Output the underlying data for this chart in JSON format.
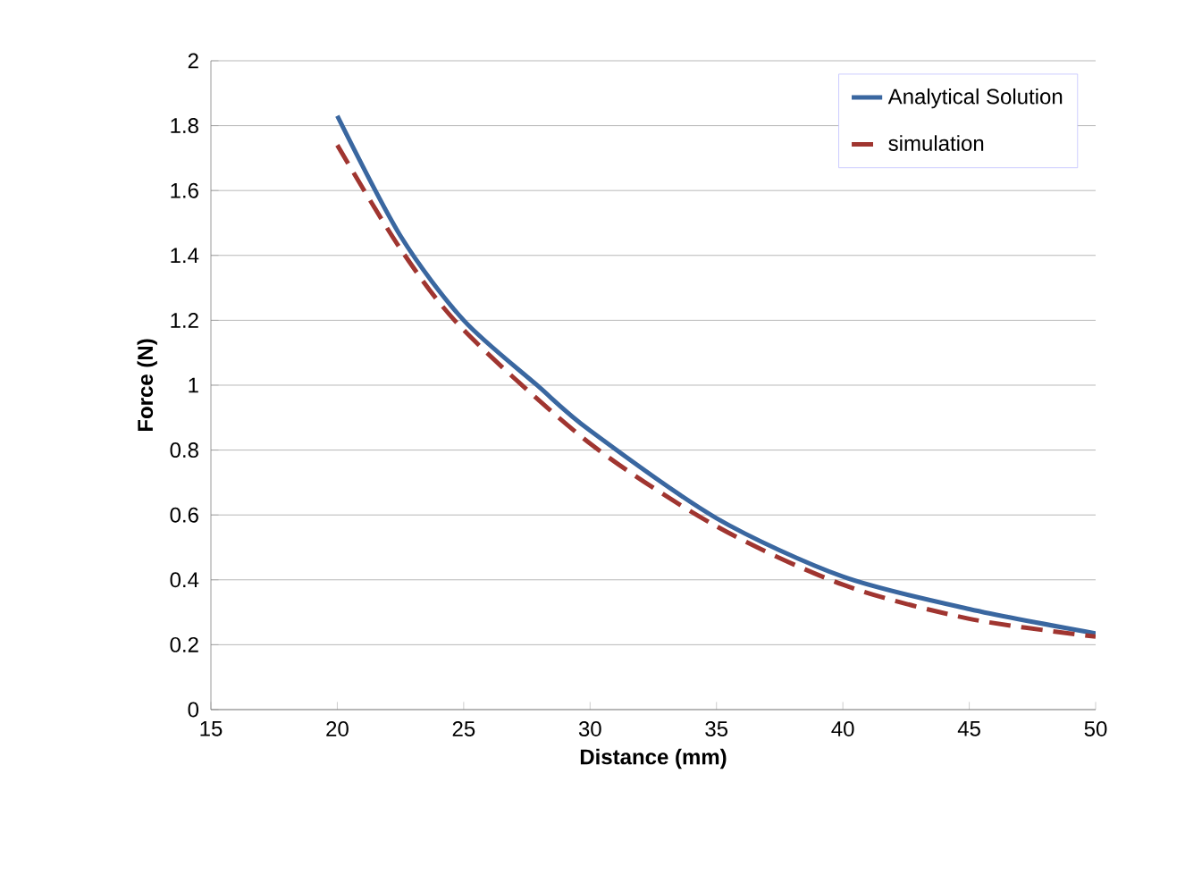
{
  "chart_data": {
    "type": "line",
    "xlabel": "Distance (mm)",
    "ylabel": "Force (N)",
    "xlim": [
      15,
      50
    ],
    "xticks": [
      15,
      20,
      25,
      30,
      35,
      40,
      45,
      50
    ],
    "ylim": [
      0,
      2
    ],
    "yticks": [
      0,
      0.2,
      0.4,
      0.6,
      0.8,
      1,
      1.2,
      1.4,
      1.6,
      1.8,
      2
    ],
    "grid": "y",
    "legend": "top right",
    "marker": "none",
    "series": [
      {
        "name": "Analytical Solution",
        "color": "#3a67a0",
        "line_style": "solid",
        "x": [
          20,
          22.5,
          25,
          27.9,
          30,
          35,
          40,
          45,
          50
        ],
        "values": [
          1.83,
          1.46,
          1.2,
          1.0,
          0.86,
          0.59,
          0.41,
          0.31,
          0.235
        ]
      },
      {
        "name": "simulation",
        "color": "#a03530",
        "line_style": "dashed",
        "x": [
          20,
          22.5,
          25,
          30,
          35,
          40,
          45,
          50
        ],
        "values": [
          1.74,
          1.42,
          1.17,
          0.82,
          0.565,
          0.385,
          0.28,
          0.225
        ]
      }
    ]
  }
}
